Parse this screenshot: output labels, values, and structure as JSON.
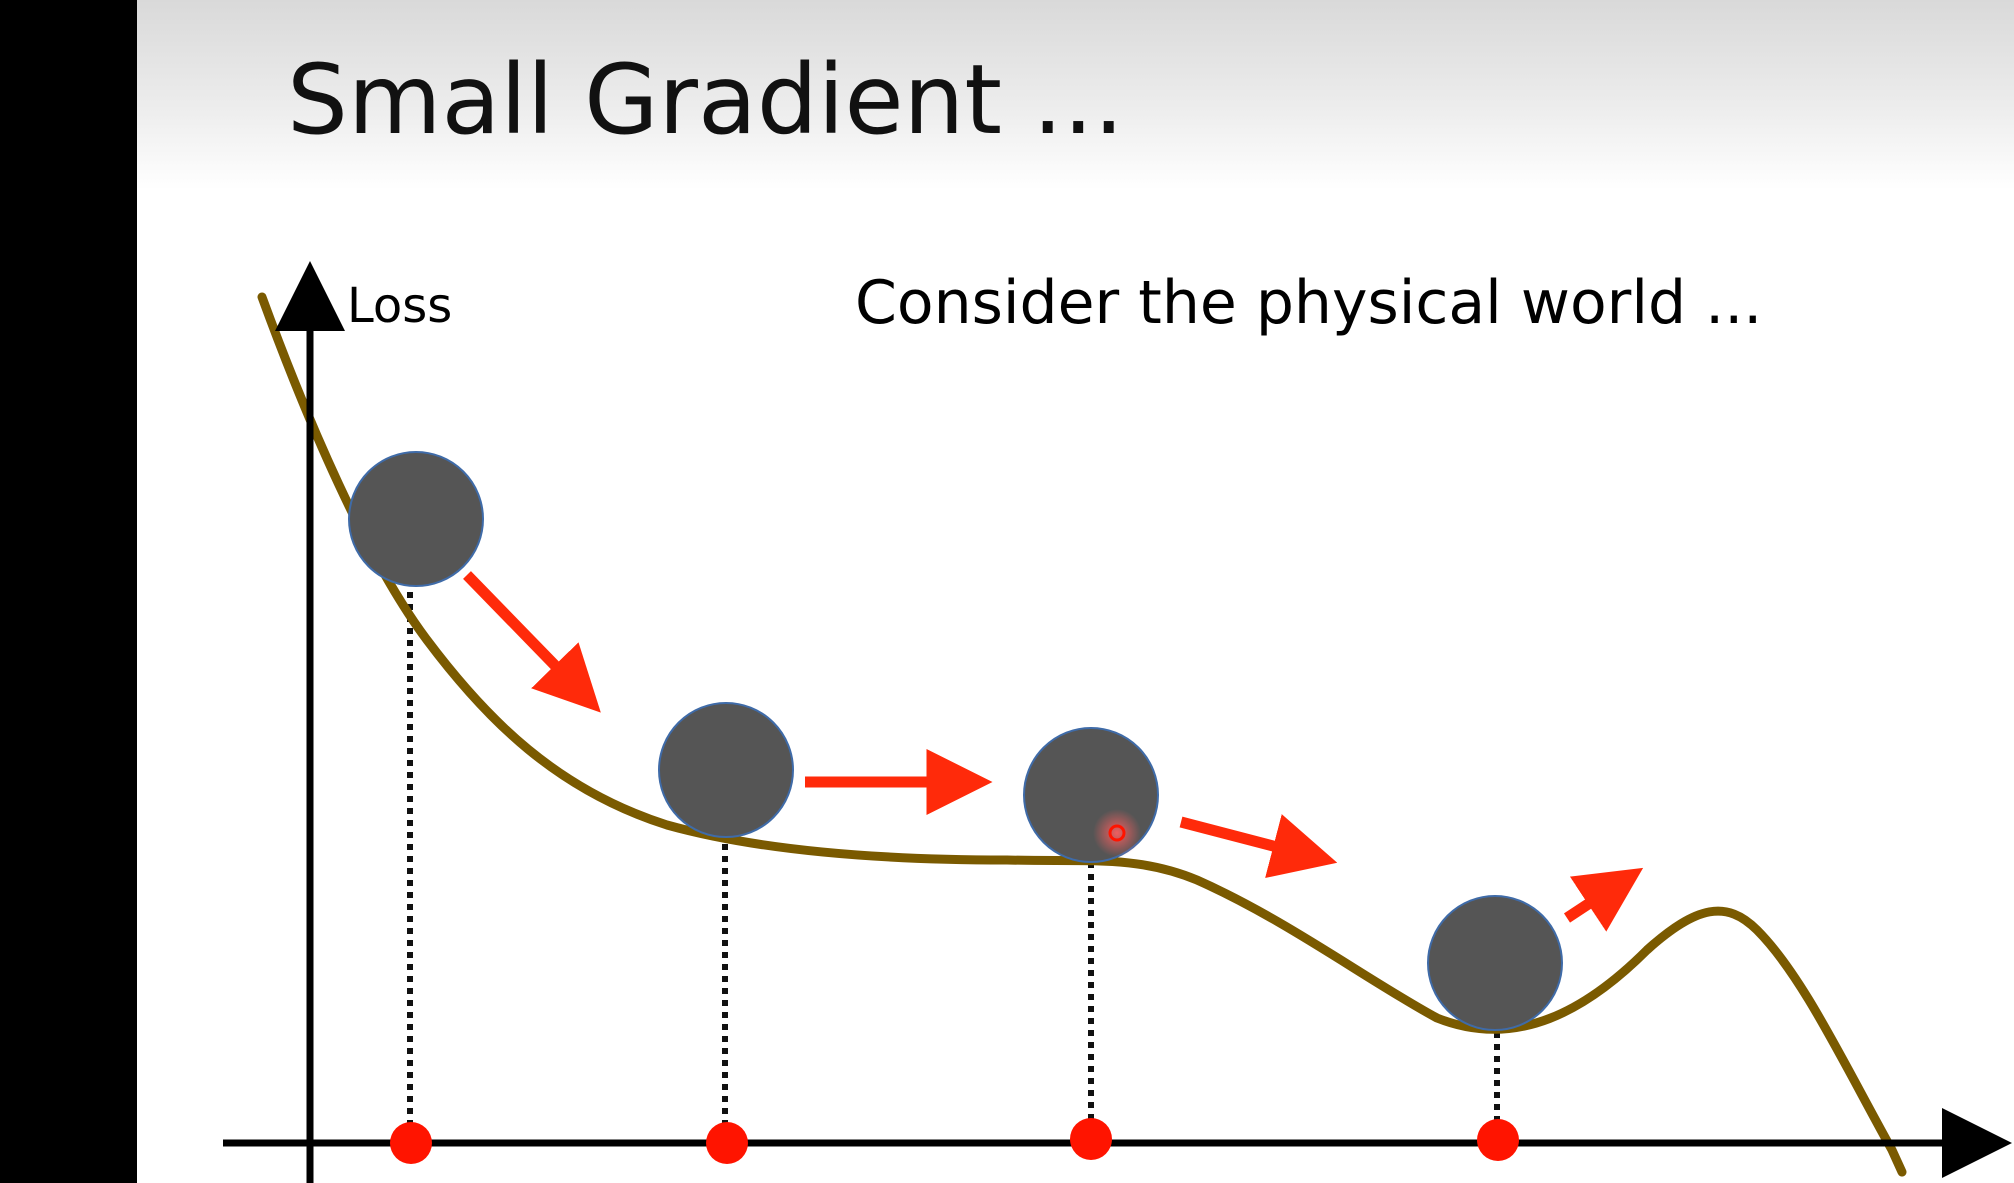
{
  "slide": {
    "title": "Small Gradient ...",
    "subtitle": "Consider the physical world ...",
    "y_axis_label": "Loss"
  },
  "colors": {
    "curve": "#7a5a00",
    "ball": "#555555",
    "ball_outline": "#3f6ba8",
    "arrow": "#ff2a0a",
    "marker_dot": "#ff1400",
    "axis": "#000000",
    "title_band_top": "#d9d9d9"
  },
  "diagram": {
    "balls": [
      {
        "name": "ball-1",
        "motion": "down-right"
      },
      {
        "name": "ball-2",
        "motion": "right"
      },
      {
        "name": "ball-3",
        "motion": "down-right"
      },
      {
        "name": "ball-4",
        "motion": "up-right"
      }
    ],
    "x_axis_markers": 4
  }
}
